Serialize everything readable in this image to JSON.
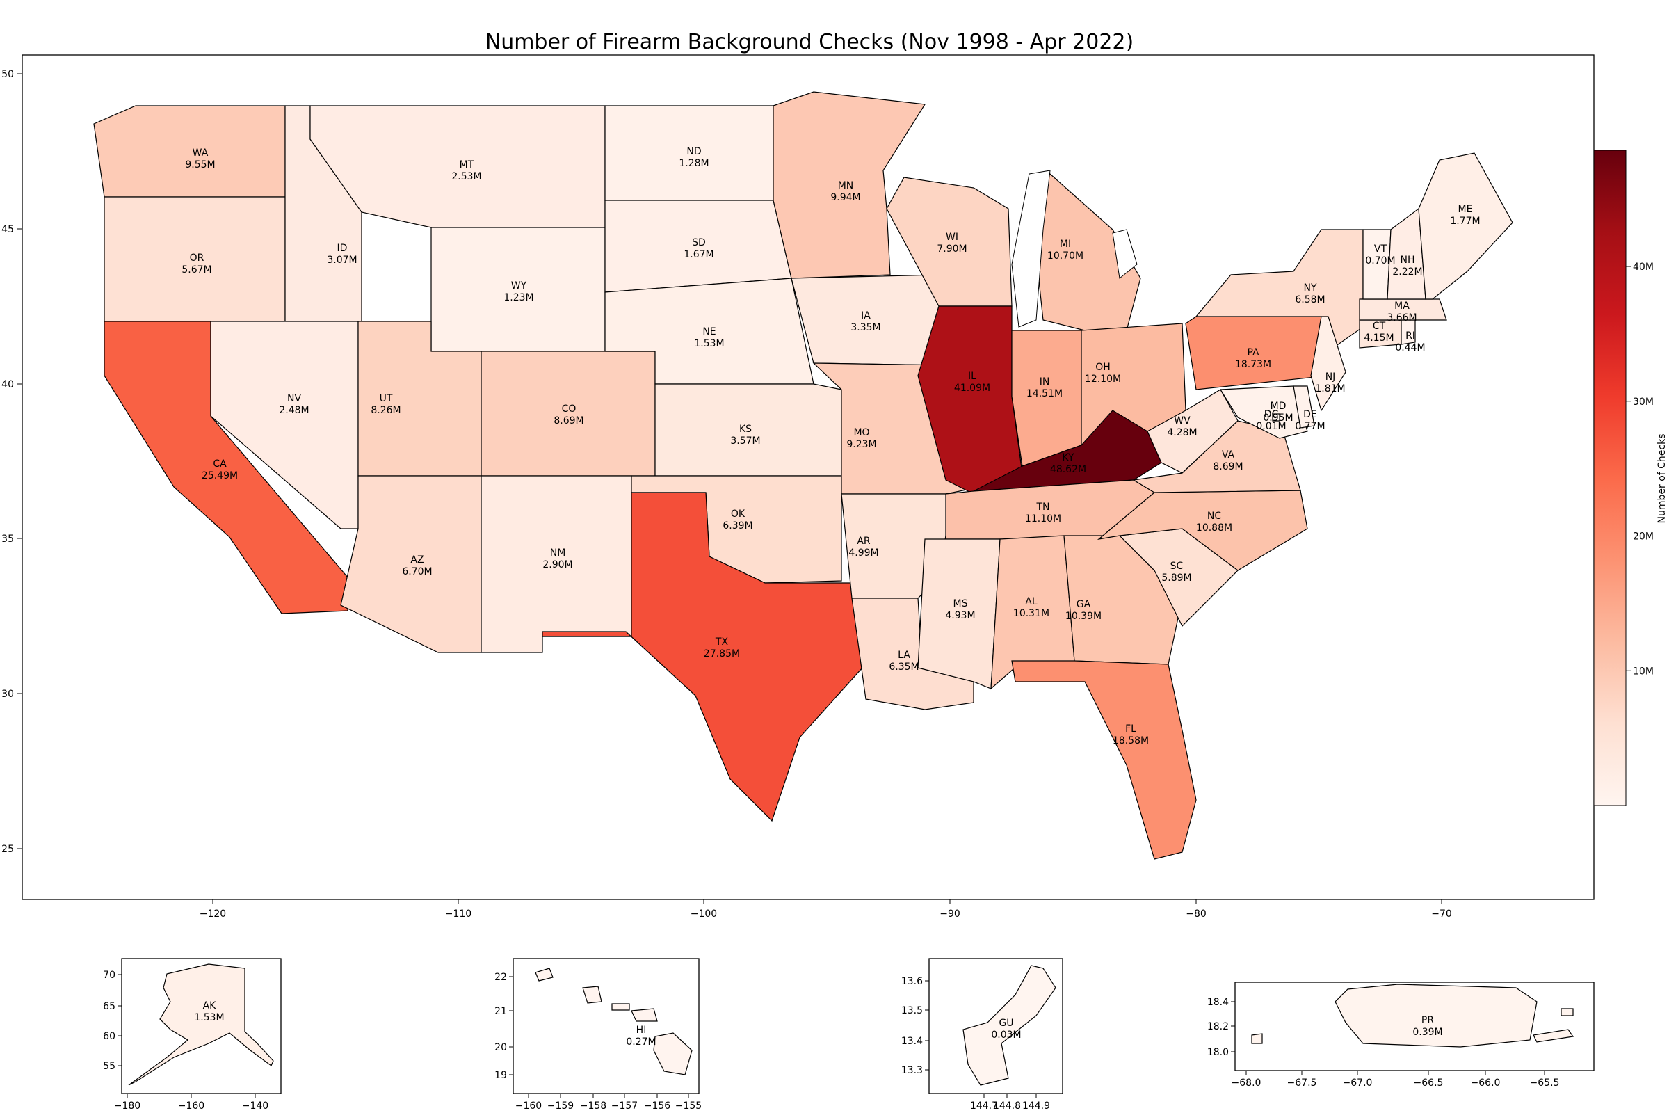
{
  "title": "Number of Firearm Background Checks (Nov 1998 - Apr 2022)",
  "colorbar": {
    "label": "Number of Checks",
    "range_millions": [
      0,
      48.62
    ],
    "ticks": [
      {
        "value": 10,
        "label": "10M"
      },
      {
        "value": 20,
        "label": "20M"
      },
      {
        "value": 30,
        "label": "30M"
      },
      {
        "value": 40,
        "label": "40M"
      }
    ],
    "colormap": "Reds"
  },
  "main_map": {
    "xlim": [
      -127.8,
      -64.0
    ],
    "ylim": [
      23.3,
      50.5
    ],
    "xticks": [
      "−120",
      "−110",
      "−100",
      "−90",
      "−80",
      "−70"
    ],
    "yticks": [
      "25",
      "30",
      "35",
      "40",
      "45",
      "50"
    ]
  },
  "states": [
    {
      "abbr": "WA",
      "value": "9.55M",
      "millions": 9.55
    },
    {
      "abbr": "OR",
      "value": "5.67M",
      "millions": 5.67
    },
    {
      "abbr": "CA",
      "value": "25.49M",
      "millions": 25.49
    },
    {
      "abbr": "ID",
      "value": "3.07M",
      "millions": 3.07
    },
    {
      "abbr": "NV",
      "value": "2.48M",
      "millions": 2.48
    },
    {
      "abbr": "MT",
      "value": "2.53M",
      "millions": 2.53
    },
    {
      "abbr": "WY",
      "value": "1.23M",
      "millions": 1.23
    },
    {
      "abbr": "UT",
      "value": "8.26M",
      "millions": 8.26
    },
    {
      "abbr": "AZ",
      "value": "6.70M",
      "millions": 6.7
    },
    {
      "abbr": "CO",
      "value": "8.69M",
      "millions": 8.69
    },
    {
      "abbr": "NM",
      "value": "2.90M",
      "millions": 2.9
    },
    {
      "abbr": "ND",
      "value": "1.28M",
      "millions": 1.28
    },
    {
      "abbr": "SD",
      "value": "1.67M",
      "millions": 1.67
    },
    {
      "abbr": "NE",
      "value": "1.53M",
      "millions": 1.53
    },
    {
      "abbr": "KS",
      "value": "3.57M",
      "millions": 3.57
    },
    {
      "abbr": "OK",
      "value": "6.39M",
      "millions": 6.39
    },
    {
      "abbr": "TX",
      "value": "27.85M",
      "millions": 27.85
    },
    {
      "abbr": "MN",
      "value": "9.94M",
      "millions": 9.94
    },
    {
      "abbr": "IA",
      "value": "3.35M",
      "millions": 3.35
    },
    {
      "abbr": "MO",
      "value": "9.23M",
      "millions": 9.23
    },
    {
      "abbr": "AR",
      "value": "4.99M",
      "millions": 4.99
    },
    {
      "abbr": "LA",
      "value": "6.35M",
      "millions": 6.35
    },
    {
      "abbr": "WI",
      "value": "7.90M",
      "millions": 7.9
    },
    {
      "abbr": "IL",
      "value": "41.09M",
      "millions": 41.09
    },
    {
      "abbr": "MI",
      "value": "10.70M",
      "millions": 10.7
    },
    {
      "abbr": "IN",
      "value": "14.51M",
      "millions": 14.51
    },
    {
      "abbr": "OH",
      "value": "12.10M",
      "millions": 12.1
    },
    {
      "abbr": "KY",
      "value": "48.62M",
      "millions": 48.62
    },
    {
      "abbr": "TN",
      "value": "11.10M",
      "millions": 11.1
    },
    {
      "abbr": "MS",
      "value": "4.93M",
      "millions": 4.93
    },
    {
      "abbr": "AL",
      "value": "10.31M",
      "millions": 10.31
    },
    {
      "abbr": "GA",
      "value": "10.39M",
      "millions": 10.39
    },
    {
      "abbr": "FL",
      "value": "18.58M",
      "millions": 18.58
    },
    {
      "abbr": "SC",
      "value": "5.89M",
      "millions": 5.89
    },
    {
      "abbr": "NC",
      "value": "10.88M",
      "millions": 10.88
    },
    {
      "abbr": "VA",
      "value": "8.69M",
      "millions": 8.69
    },
    {
      "abbr": "WV",
      "value": "4.28M",
      "millions": 4.28
    },
    {
      "abbr": "PA",
      "value": "18.73M",
      "millions": 18.73
    },
    {
      "abbr": "NY",
      "value": "6.58M",
      "millions": 6.58
    },
    {
      "abbr": "NJ",
      "value": "1.81M",
      "millions": 1.81
    },
    {
      "abbr": "MD",
      "value": "0.95M",
      "millions": 0.95
    },
    {
      "abbr": "DE",
      "value": "0.77M",
      "millions": 0.77
    },
    {
      "abbr": "DC",
      "value": "0.01M",
      "millions": 0.01
    },
    {
      "abbr": "CT",
      "value": "4.15M",
      "millions": 4.15
    },
    {
      "abbr": "RI",
      "value": "0.44M",
      "millions": 0.44
    },
    {
      "abbr": "MA",
      "value": "3.66M",
      "millions": 3.66
    },
    {
      "abbr": "VT",
      "value": "0.70M",
      "millions": 0.7
    },
    {
      "abbr": "NH",
      "value": "2.22M",
      "millions": 2.22
    },
    {
      "abbr": "ME",
      "value": "1.77M",
      "millions": 1.77
    }
  ],
  "insets": [
    {
      "id": "AK",
      "abbr": "AK",
      "value": "1.53M",
      "millions": 1.53,
      "xticks": [
        "−180",
        "−160",
        "−140"
      ],
      "yticks": [
        "55",
        "60",
        "65",
        "70"
      ]
    },
    {
      "id": "HI",
      "abbr": "HI",
      "value": "0.27M",
      "millions": 0.27,
      "xticks": [
        "−160",
        "−159",
        "−158",
        "−157",
        "−156",
        "−155"
      ],
      "yticks": [
        "19",
        "20",
        "21",
        "22"
      ]
    },
    {
      "id": "GU",
      "abbr": "GU",
      "value": "0.03M",
      "millions": 0.03,
      "xticks": [
        "144.7",
        "144.8",
        "144.9"
      ],
      "yticks": [
        "13.3",
        "13.4",
        "13.5",
        "13.6"
      ]
    },
    {
      "id": "PR",
      "abbr": "PR",
      "value": "0.39M",
      "millions": 0.39,
      "xticks": [
        "−68.0",
        "−67.5",
        "−67.0",
        "−66.5",
        "−66.0",
        "−65.5"
      ],
      "yticks": [
        "18.0",
        "18.2",
        "18.4"
      ]
    }
  ]
}
